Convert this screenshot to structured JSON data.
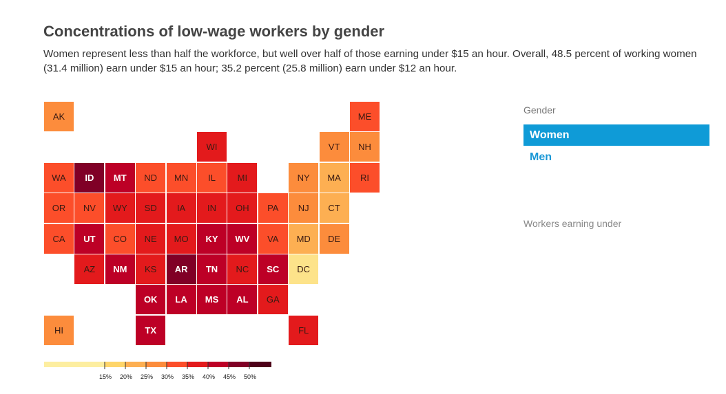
{
  "header": {
    "title": "Concentrations of low-wage workers by gender",
    "subtitle": "Women represent less than half the workforce, but well over half of those earning under $15 an hour. Overall, 48.5 percent of working women (31.4 million) earn under $15 an hour; 35.2 percent (25.8 million) earn under $12 an hour."
  },
  "panel": {
    "gender_label": "Gender",
    "women_label": "Women",
    "men_label": "Men",
    "threshold_label": "Workers earning under",
    "selected": "Women"
  },
  "chart_data": {
    "type": "heatmap",
    "title": "Concentrations of low-wage workers by gender",
    "value_unit": "percent of working women earning under $15 an hour (estimated from color bins)",
    "legend_ticks": [
      "15%",
      "20%",
      "25%",
      "30%",
      "35%",
      "40%",
      "45%",
      "50%"
    ],
    "legend_min": 10,
    "legend_max": 55,
    "bins": [
      {
        "min": 10,
        "max": 25,
        "color": "#fde38a"
      },
      {
        "min": 25,
        "max": 30,
        "color": "#fdaf52"
      },
      {
        "min": 30,
        "max": 35,
        "color": "#fc8c3c"
      },
      {
        "min": 35,
        "max": 40,
        "color": "#fc4e2a"
      },
      {
        "min": 40,
        "max": 45,
        "color": "#e31a1c"
      },
      {
        "min": 45,
        "max": 50,
        "color": "#bd0026"
      },
      {
        "min": 50,
        "max": 55,
        "color": "#800026"
      },
      {
        "min": 55,
        "max": 60,
        "color": "#4d0019"
      }
    ],
    "states": [
      {
        "abbr": "AK",
        "row": 0,
        "col": 0,
        "value": 32
      },
      {
        "abbr": "ME",
        "row": 0,
        "col": 10,
        "value": 37
      },
      {
        "abbr": "WI",
        "row": 1,
        "col": 5,
        "value": 42
      },
      {
        "abbr": "VT",
        "row": 1,
        "col": 9,
        "value": 32
      },
      {
        "abbr": "NH",
        "row": 1,
        "col": 10,
        "value": 32
      },
      {
        "abbr": "WA",
        "row": 2,
        "col": 0,
        "value": 37
      },
      {
        "abbr": "ID",
        "row": 2,
        "col": 1,
        "value": 52
      },
      {
        "abbr": "MT",
        "row": 2,
        "col": 2,
        "value": 47
      },
      {
        "abbr": "ND",
        "row": 2,
        "col": 3,
        "value": 37
      },
      {
        "abbr": "MN",
        "row": 2,
        "col": 4,
        "value": 37
      },
      {
        "abbr": "IL",
        "row": 2,
        "col": 5,
        "value": 37
      },
      {
        "abbr": "MI",
        "row": 2,
        "col": 6,
        "value": 42
      },
      {
        "abbr": "NY",
        "row": 2,
        "col": 8,
        "value": 32
      },
      {
        "abbr": "MA",
        "row": 2,
        "col": 9,
        "value": 27
      },
      {
        "abbr": "RI",
        "row": 2,
        "col": 10,
        "value": 37
      },
      {
        "abbr": "OR",
        "row": 3,
        "col": 0,
        "value": 37
      },
      {
        "abbr": "NV",
        "row": 3,
        "col": 1,
        "value": 37
      },
      {
        "abbr": "WY",
        "row": 3,
        "col": 2,
        "value": 42
      },
      {
        "abbr": "SD",
        "row": 3,
        "col": 3,
        "value": 42
      },
      {
        "abbr": "IA",
        "row": 3,
        "col": 4,
        "value": 42
      },
      {
        "abbr": "IN",
        "row": 3,
        "col": 5,
        "value": 42
      },
      {
        "abbr": "OH",
        "row": 3,
        "col": 6,
        "value": 42
      },
      {
        "abbr": "PA",
        "row": 3,
        "col": 7,
        "value": 37
      },
      {
        "abbr": "NJ",
        "row": 3,
        "col": 8,
        "value": 32
      },
      {
        "abbr": "CT",
        "row": 3,
        "col": 9,
        "value": 27
      },
      {
        "abbr": "CA",
        "row": 4,
        "col": 0,
        "value": 37
      },
      {
        "abbr": "UT",
        "row": 4,
        "col": 1,
        "value": 47
      },
      {
        "abbr": "CO",
        "row": 4,
        "col": 2,
        "value": 37
      },
      {
        "abbr": "NE",
        "row": 4,
        "col": 3,
        "value": 42
      },
      {
        "abbr": "MO",
        "row": 4,
        "col": 4,
        "value": 42
      },
      {
        "abbr": "KY",
        "row": 4,
        "col": 5,
        "value": 47
      },
      {
        "abbr": "WV",
        "row": 4,
        "col": 6,
        "value": 47
      },
      {
        "abbr": "VA",
        "row": 4,
        "col": 7,
        "value": 37
      },
      {
        "abbr": "MD",
        "row": 4,
        "col": 8,
        "value": 27
      },
      {
        "abbr": "DE",
        "row": 4,
        "col": 9,
        "value": 32
      },
      {
        "abbr": "AZ",
        "row": 5,
        "col": 1,
        "value": 42
      },
      {
        "abbr": "NM",
        "row": 5,
        "col": 2,
        "value": 47
      },
      {
        "abbr": "KS",
        "row": 5,
        "col": 3,
        "value": 42
      },
      {
        "abbr": "AR",
        "row": 5,
        "col": 4,
        "value": 52
      },
      {
        "abbr": "TN",
        "row": 5,
        "col": 5,
        "value": 47
      },
      {
        "abbr": "NC",
        "row": 5,
        "col": 6,
        "value": 42
      },
      {
        "abbr": "SC",
        "row": 5,
        "col": 7,
        "value": 47
      },
      {
        "abbr": "DC",
        "row": 5,
        "col": 8,
        "value": 22
      },
      {
        "abbr": "OK",
        "row": 6,
        "col": 3,
        "value": 47
      },
      {
        "abbr": "LA",
        "row": 6,
        "col": 4,
        "value": 47
      },
      {
        "abbr": "MS",
        "row": 6,
        "col": 5,
        "value": 47
      },
      {
        "abbr": "AL",
        "row": 6,
        "col": 6,
        "value": 47
      },
      {
        "abbr": "GA",
        "row": 6,
        "col": 7,
        "value": 42
      },
      {
        "abbr": "HI",
        "row": 7,
        "col": 0,
        "value": 32
      },
      {
        "abbr": "TX",
        "row": 7,
        "col": 3,
        "value": 47
      },
      {
        "abbr": "FL",
        "row": 7,
        "col": 8,
        "value": 42
      }
    ]
  }
}
